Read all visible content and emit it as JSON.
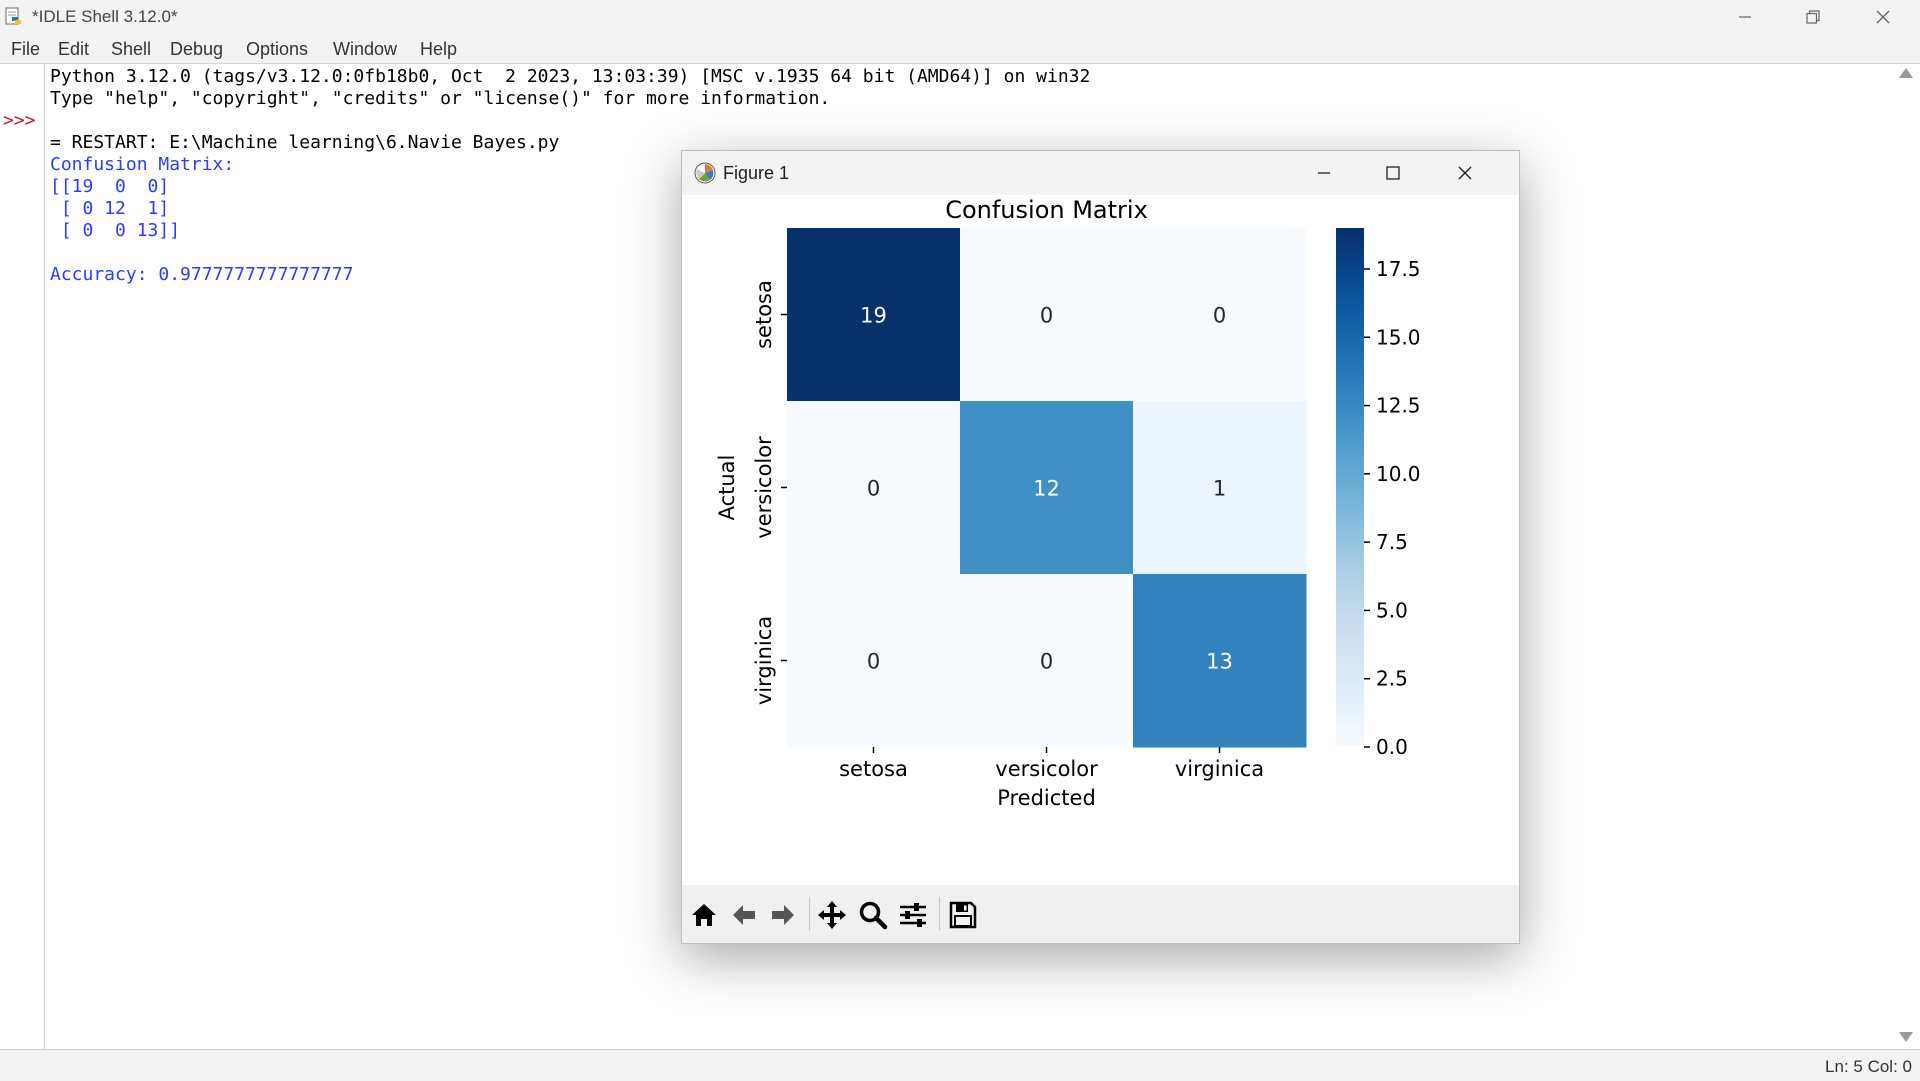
{
  "window": {
    "title": "*IDLE Shell 3.12.0*"
  },
  "menu": [
    "File",
    "Edit",
    "Shell",
    "Debug",
    "Options",
    "Window",
    "Help"
  ],
  "shell": {
    "prompt": ">>>",
    "lines": [
      {
        "text": "Python 3.12.0 (tags/v3.12.0:0fb18b0, Oct  2 2023, 13:03:39) [MSC v.1935 64 bit (AMD64)] on win32",
        "kind": "plain"
      },
      {
        "text": "Type \"help\", \"copyright\", \"credits\" or \"license()\" for more information.",
        "kind": "plain"
      },
      {
        "text": "",
        "kind": "plain"
      },
      {
        "text": "= RESTART: E:\\Machine learning\\6.Navie Bayes.py",
        "kind": "plain"
      },
      {
        "text": "Confusion Matrix:",
        "kind": "out"
      },
      {
        "text": "[[19  0  0]",
        "kind": "out"
      },
      {
        "text": " [ 0 12  1]",
        "kind": "out"
      },
      {
        "text": " [ 0  0 13]]",
        "kind": "out"
      },
      {
        "text": "",
        "kind": "out"
      },
      {
        "text": "Accuracy: 0.9777777777777777",
        "kind": "out"
      }
    ]
  },
  "status": {
    "text": "Ln: 5  Col: 0"
  },
  "figure": {
    "title": "Figure 1",
    "toolbar": [
      {
        "name": "home-icon"
      },
      {
        "name": "back-arrow-icon"
      },
      {
        "name": "forward-arrow-icon"
      },
      {
        "name": "pan-icon"
      },
      {
        "name": "zoom-icon"
      },
      {
        "name": "subplots-config-icon"
      },
      {
        "name": "save-icon"
      }
    ]
  },
  "chart_data": {
    "type": "heatmap",
    "title": "Confusion Matrix",
    "xlabel": "Predicted",
    "ylabel": "Actual",
    "x_categories": [
      "setosa",
      "versicolor",
      "virginica"
    ],
    "y_categories": [
      "setosa",
      "versicolor",
      "virginica"
    ],
    "values": [
      [
        19,
        0,
        0
      ],
      [
        0,
        12,
        1
      ],
      [
        0,
        0,
        13
      ]
    ],
    "colormap": "Blues",
    "colorbar": {
      "range": [
        0,
        19
      ],
      "ticks": [
        0.0,
        2.5,
        5.0,
        7.5,
        10.0,
        12.5,
        15.0,
        17.5
      ],
      "tick_labels": [
        "0.0",
        "2.5",
        "5.0",
        "7.5",
        "10.0",
        "12.5",
        "15.0",
        "17.5"
      ]
    },
    "annotations": true,
    "colors": {
      "low": "#f7fbff",
      "high": "#08306b",
      "text_dark": "#262626",
      "text_light": "#ffffff"
    }
  }
}
